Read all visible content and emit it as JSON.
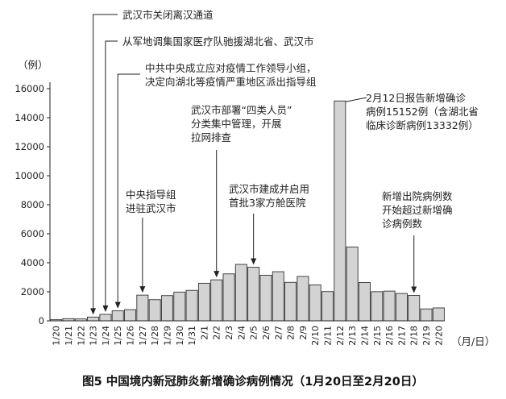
{
  "chart_data": {
    "type": "bar",
    "title": "",
    "xlabel": "（月/日）",
    "ylabel": "（例）",
    "ylim": [
      0,
      16000
    ],
    "yticks": [
      0,
      2000,
      4000,
      6000,
      8000,
      10000,
      12000,
      14000,
      16000
    ],
    "grid": false,
    "bar_color": "#d3d3d3",
    "categories": [
      "1/20",
      "1/21",
      "1/22",
      "1/23",
      "1/24",
      "1/25",
      "1/26",
      "1/27",
      "1/28",
      "1/29",
      "1/30",
      "1/31",
      "2/1",
      "2/2",
      "2/3",
      "2/4",
      "2/5",
      "2/6",
      "2/7",
      "2/8",
      "2/9",
      "2/10",
      "2/11",
      "2/12",
      "2/13",
      "2/14",
      "2/15",
      "2/16",
      "2/17",
      "2/18",
      "2/19",
      "2/20"
    ],
    "values": [
      77,
      149,
      131,
      259,
      444,
      688,
      769,
      1771,
      1459,
      1737,
      1981,
      2099,
      2589,
      2825,
      3235,
      3887,
      3694,
      3143,
      3385,
      2652,
      3062,
      2478,
      2015,
      15152,
      5090,
      2641,
      2008,
      2048,
      1886,
      1749,
      820,
      889
    ],
    "annotations": [
      {
        "category": "1/23",
        "lines": [
          "武汉市关闭离汉通道"
        ]
      },
      {
        "category": "1/24",
        "lines": [
          "从军地调集国家医疗队驰援湖北省、武汉市"
        ]
      },
      {
        "category": "1/25",
        "lines": [
          "中共中央成立应对疫情工作领导小组，",
          "决定向湖北等疫情严重地区派出指导组"
        ]
      },
      {
        "category": "1/27",
        "lines": [
          "中央指导组",
          "进驻武汉市"
        ]
      },
      {
        "category": "2/2",
        "lines": [
          "武汉市部署“四类人员”",
          "分类集中管理，开展",
          "拉网排查"
        ]
      },
      {
        "category": "2/5",
        "lines": [
          "武汉市建成并启用",
          "首批3家方舱医院"
        ]
      },
      {
        "category": "2/12",
        "lines": [
          "2月12日报告新增确诊",
          "病例15152例（含湖北省",
          "临床诊断病例13332例）"
        ]
      },
      {
        "category": "2/18",
        "lines": [
          "新增出院病例数",
          "开始超过新增确",
          "诊病例数"
        ]
      }
    ]
  },
  "caption": "图5   中国境内新冠肺炎新增确诊病例情况（1月20日至2月20日）"
}
